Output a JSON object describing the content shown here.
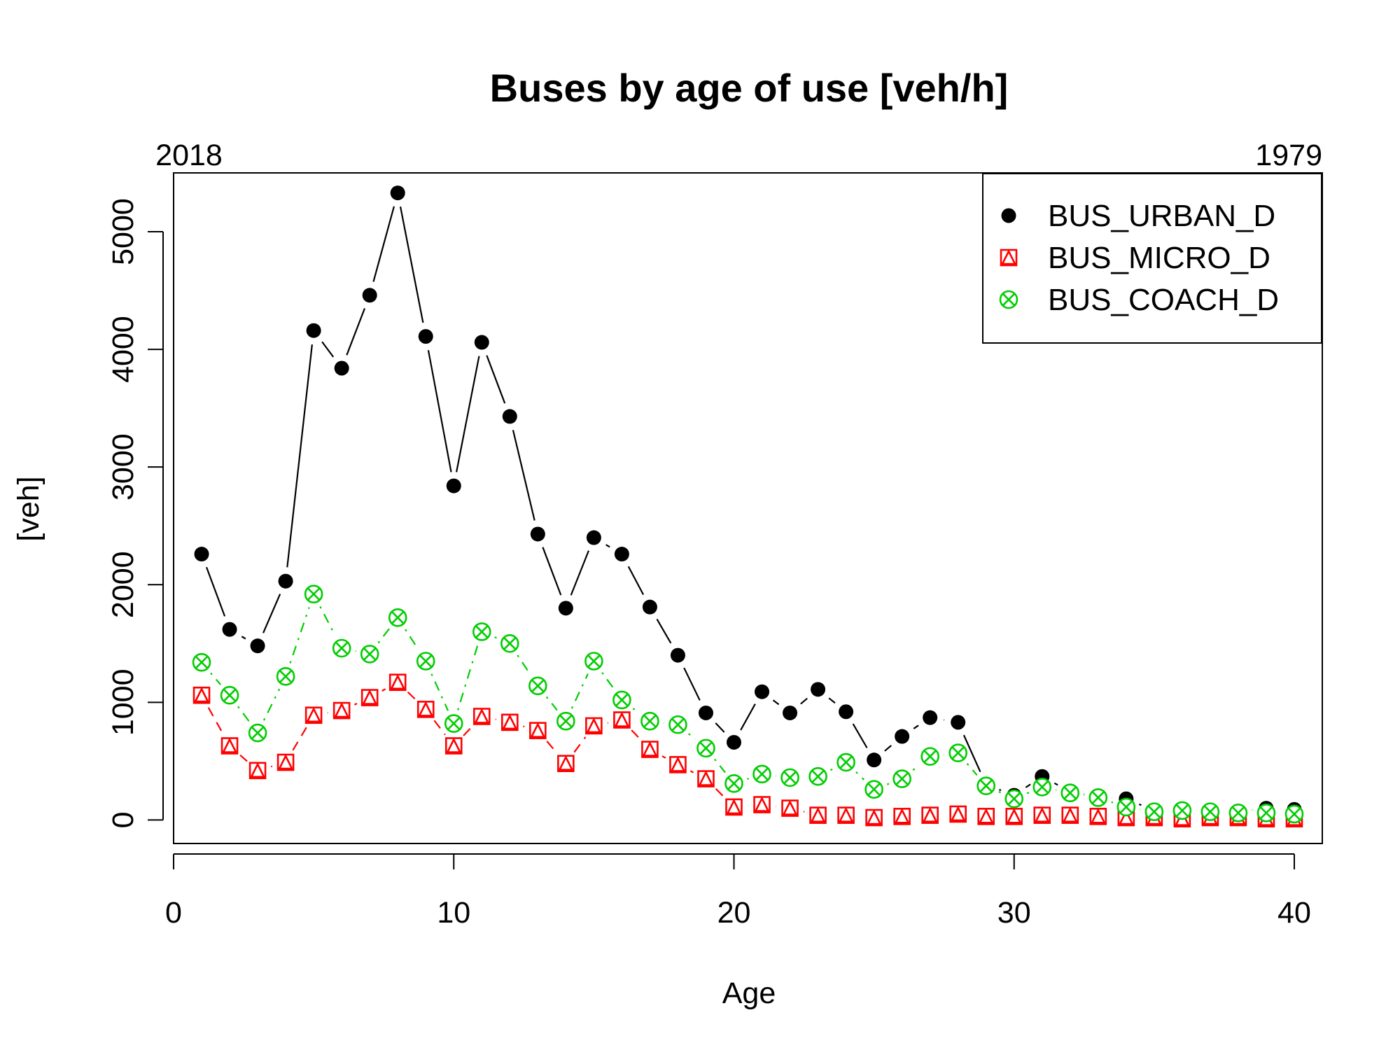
{
  "chart_data": {
    "type": "line",
    "title": "Buses by age of use [veh/h]",
    "xlabel": "Age",
    "ylabel": "[veh]",
    "top_left_label": "2018",
    "top_right_label": "1979",
    "xlim": [
      0,
      41
    ],
    "ylim": [
      -200,
      5500
    ],
    "x_ticks": [
      0,
      10,
      20,
      30,
      40
    ],
    "y_ticks": [
      0,
      1000,
      2000,
      3000,
      4000,
      5000
    ],
    "legend_position": "top-right",
    "grid": false,
    "x": [
      1,
      2,
      3,
      4,
      5,
      6,
      7,
      8,
      9,
      10,
      11,
      12,
      13,
      14,
      15,
      16,
      17,
      18,
      19,
      20,
      21,
      22,
      23,
      24,
      25,
      26,
      27,
      28,
      29,
      30,
      31,
      32,
      33,
      34,
      35,
      36,
      37,
      38,
      39,
      40
    ],
    "series": [
      {
        "name": "BUS_URBAN_D",
        "color": "#000000",
        "marker": "filled-circle",
        "line": "solid",
        "values": [
          2260,
          1620,
          1480,
          2030,
          4160,
          3840,
          4460,
          5330,
          4110,
          2840,
          4060,
          3430,
          2430,
          1800,
          2400,
          2260,
          1810,
          1400,
          910,
          660,
          1090,
          910,
          1110,
          920,
          510,
          710,
          870,
          830,
          300,
          210,
          370,
          240,
          200,
          180,
          80,
          90,
          80,
          70,
          100,
          90
        ]
      },
      {
        "name": "BUS_MICRO_D",
        "color": "#ff0000",
        "marker": "triangle-in-square",
        "line": "dashed",
        "values": [
          1060,
          630,
          420,
          490,
          890,
          930,
          1040,
          1170,
          940,
          630,
          880,
          830,
          760,
          480,
          800,
          850,
          600,
          470,
          350,
          110,
          130,
          100,
          40,
          40,
          20,
          30,
          40,
          50,
          30,
          30,
          40,
          40,
          30,
          20,
          20,
          10,
          20,
          20,
          10,
          10
        ]
      },
      {
        "name": "BUS_COACH_D",
        "color": "#00cd00",
        "marker": "x-in-circle",
        "line": "dotdash",
        "values": [
          1340,
          1060,
          740,
          1220,
          1920,
          1460,
          1410,
          1720,
          1350,
          820,
          1600,
          1500,
          1140,
          840,
          1350,
          1020,
          840,
          810,
          610,
          310,
          390,
          360,
          370,
          490,
          260,
          350,
          540,
          570,
          290,
          180,
          280,
          230,
          190,
          110,
          70,
          80,
          70,
          60,
          60,
          50
        ]
      }
    ]
  }
}
